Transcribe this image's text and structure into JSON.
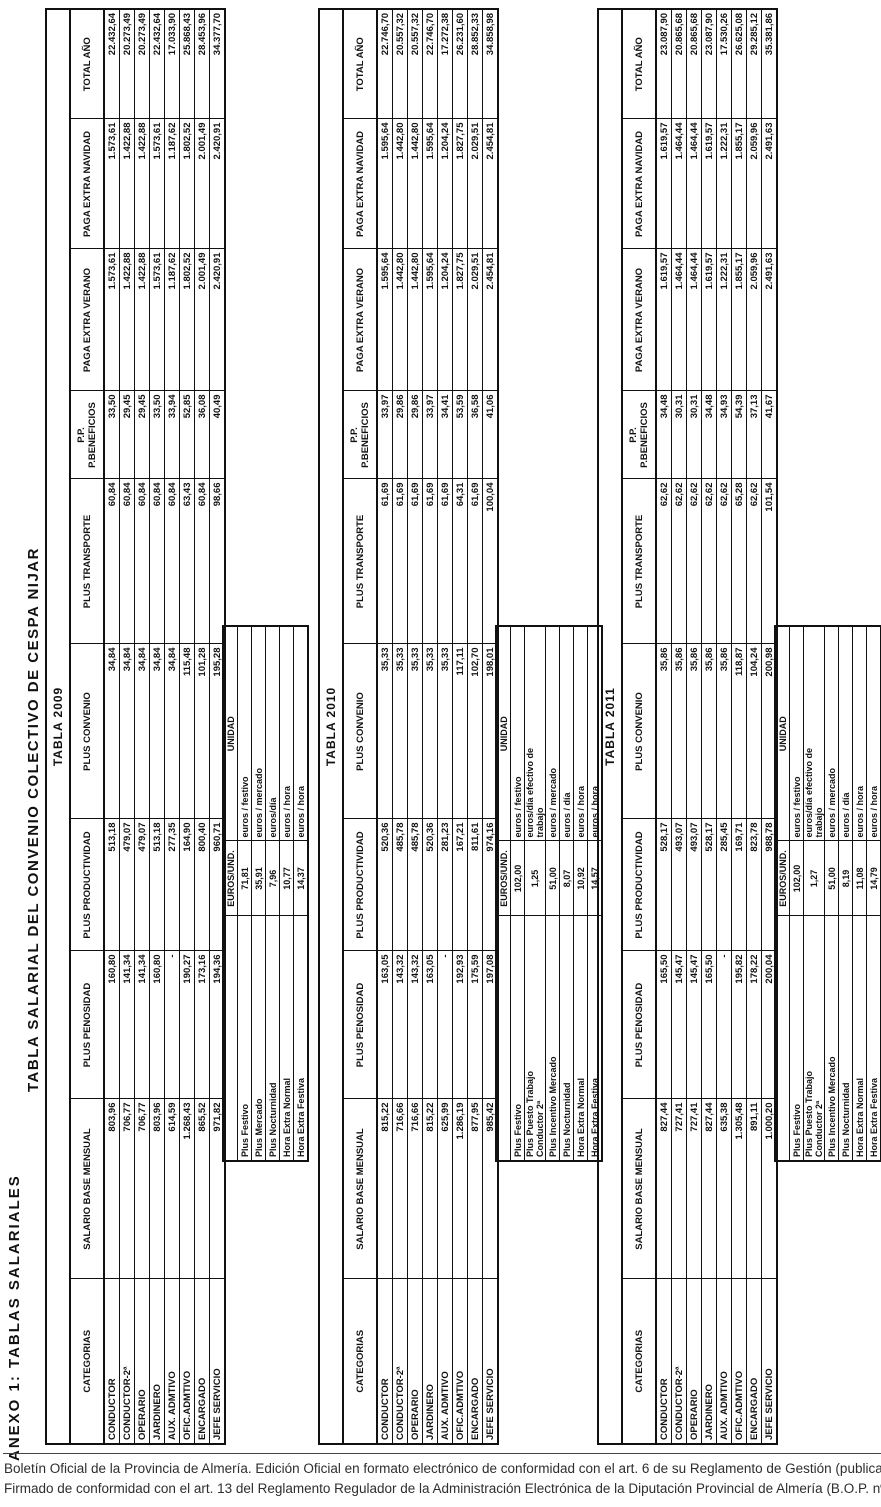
{
  "page": {
    "anexo_title": "ANEXO 1: TABLAS SALARIALES",
    "main_title": "TABLA SALARIAL DEL CONVENIO COLECTIVO DE CESPA NIJAR",
    "footer_line1": "Boletín Oficial de la Provincia de Almería. Edición Oficial en formato electrónico de conformidad con el art. 6 de su Reglamento de Gestión (publicado en B.O.P. n",
    "footer_line2": "Firmado de conformidad con el art. 13 del Reglamento Regulador de la Administración Electrónica de la Diputación Provincial de Almería (B.O.P. nº"
  },
  "columns": [
    "CATEGORIAS",
    "SALARIO BASE MENSUAL",
    "PLUS PENOSIDAD",
    "PLUS PRODUCTIVIDAD",
    "PLUS CONVENIO",
    "PLUS TRANSPORTE",
    "P.P. P.BENEFICIOS",
    "PAGA EXTRA VERANO",
    "PAGA EXTRA NAVIDAD",
    "TOTAL AÑO"
  ],
  "tables": [
    {
      "title": "TABLA 2009",
      "rows": [
        {
          "category": "CONDUCTOR",
          "values": [
            "803,96",
            "160,80",
            "513,18",
            "34,84",
            "60,84",
            "33,50",
            "1.573,61",
            "1.573,61",
            "22.432,64"
          ]
        },
        {
          "category": "CONDUCTOR-2ª",
          "values": [
            "706,77",
            "141,34",
            "479,07",
            "34,84",
            "60,84",
            "29,45",
            "1.422,88",
            "1.422,88",
            "20.273,49"
          ]
        },
        {
          "category": "OPERARIO",
          "values": [
            "706,77",
            "141,34",
            "479,07",
            "34,84",
            "60,84",
            "29,45",
            "1.422,88",
            "1.422,88",
            "20.273,49"
          ]
        },
        {
          "category": "JARDINERO",
          "values": [
            "803,96",
            "160,80",
            "513,18",
            "34,84",
            "60,84",
            "33,50",
            "1.573,61",
            "1.573,61",
            "22.432,64"
          ]
        },
        {
          "category": "AUX. ADMTIVO",
          "values": [
            "614,59",
            "-",
            "277,35",
            "34,84",
            "60,84",
            "33,94",
            "1.187,62",
            "1.187,62",
            "17.033,90"
          ]
        },
        {
          "category": "OFIC.ADMTIVO",
          "values": [
            "1.268,43",
            "190,27",
            "164,90",
            "115,48",
            "63,43",
            "52,85",
            "1.802,52",
            "1.802,52",
            "25.868,43"
          ]
        },
        {
          "category": "ENCARGADO",
          "values": [
            "865,52",
            "173,16",
            "800,40",
            "101,28",
            "60,84",
            "36,08",
            "2.001,49",
            "2.001,49",
            "28.453,96"
          ]
        },
        {
          "category": "JEFE SERVICIO",
          "values": [
            "971,82",
            "194,36",
            "960,71",
            "195,28",
            "98,66",
            "40,49",
            "2.420,91",
            "2.420,91",
            "34.377,70"
          ]
        }
      ],
      "extras": {
        "value_header": "EUROS/UND.",
        "unit_header": "UNIDAD",
        "rows": [
          {
            "label": "Plus Festivo",
            "label2": "",
            "value": "71,81",
            "unit": "euros / festivo",
            "unit2": ""
          },
          {
            "label": "Plus Mercado",
            "label2": "",
            "value": "35,91",
            "unit": "euros / mercado",
            "unit2": ""
          },
          {
            "label": "Plus Nocturnidad",
            "label2": "",
            "value": "7,96",
            "unit": "euros/día",
            "unit2": ""
          },
          {
            "label": "Hora Extra Normal",
            "label2": "",
            "value": "10,77",
            "unit": "euros / hora",
            "unit2": ""
          },
          {
            "label": "Hora Extra Festiva",
            "label2": "",
            "value": "14,37",
            "unit": "euros / hora",
            "unit2": ""
          }
        ]
      }
    },
    {
      "title": "TABLA 2010",
      "rows": [
        {
          "category": "CONDUCTOR",
          "values": [
            "815,22",
            "163,05",
            "520,36",
            "35,33",
            "61,69",
            "33,97",
            "1.595,64",
            "1.595,64",
            "22.746,70"
          ]
        },
        {
          "category": "CONDUCTOR-2ª",
          "values": [
            "716,66",
            "143,32",
            "485,78",
            "35,33",
            "61,69",
            "29,86",
            "1.442,80",
            "1.442,80",
            "20.557,32"
          ]
        },
        {
          "category": "OPERARIO",
          "values": [
            "716,66",
            "143,32",
            "485,78",
            "35,33",
            "61,69",
            "29,86",
            "1.442,80",
            "1.442,80",
            "20.557,32"
          ]
        },
        {
          "category": "JARDINERO",
          "values": [
            "815,22",
            "163,05",
            "520,36",
            "35,33",
            "61,69",
            "33,97",
            "1.595,64",
            "1.595,64",
            "22.746,70"
          ]
        },
        {
          "category": "AUX. ADMTIVO",
          "values": [
            "625,99",
            "-",
            "281,23",
            "35,33",
            "61,69",
            "34,41",
            "1.204,24",
            "1.204,24",
            "17.272,38"
          ]
        },
        {
          "category": "OFIC.ADMTIVO",
          "values": [
            "1.286,19",
            "192,93",
            "167,21",
            "117,11",
            "64,31",
            "53,59",
            "1.827,75",
            "1.827,75",
            "26.231,60"
          ]
        },
        {
          "category": "ENCARGADO",
          "values": [
            "877,95",
            "175,59",
            "811,61",
            "102,70",
            "61,69",
            "36,58",
            "2.029,51",
            "2.029,51",
            "28.852,33"
          ]
        },
        {
          "category": "JEFE SERVICIO",
          "values": [
            "985,42",
            "197,08",
            "974,16",
            "198,01",
            "100,04",
            "41,06",
            "2.454,81",
            "2.454,81",
            "34.858,98"
          ]
        }
      ],
      "extras": {
        "value_header": "EUROS/UND.",
        "unit_header": "UNIDAD",
        "rows": [
          {
            "label": "Plus Festivo",
            "label2": "",
            "value": "102,00",
            "unit": "euros / festivo",
            "unit2": ""
          },
          {
            "label": "Plus Puesto Trabajo",
            "label2": "Conductor 2ª",
            "value": "1,25",
            "unit": "euros/día efectivo de",
            "unit2": "trabajo"
          },
          {
            "label": "Plus Incentivo Mercado",
            "label2": "",
            "value": "51,00",
            "unit": "euros / mercado",
            "unit2": ""
          },
          {
            "label": "Plus Nocturnidad",
            "label2": "",
            "value": "8,07",
            "unit": "euros / día",
            "unit2": ""
          },
          {
            "label": "Hora Extra Normal",
            "label2": "",
            "value": "10,92",
            "unit": "euros / hora",
            "unit2": ""
          },
          {
            "label": "Hora Extra Festiva",
            "label2": "",
            "value": "14,57",
            "unit": "euros / hora",
            "unit2": ""
          }
        ]
      }
    },
    {
      "title": "TABLA 2011",
      "rows": [
        {
          "category": "CONDUCTOR",
          "values": [
            "827,44",
            "165,50",
            "528,17",
            "35,86",
            "62,62",
            "34,48",
            "1.619,57",
            "1.619,57",
            "23.087,90"
          ]
        },
        {
          "category": "CONDUCTOR-2ª",
          "values": [
            "727,41",
            "145,47",
            "493,07",
            "35,86",
            "62,62",
            "30,31",
            "1.464,44",
            "1.464,44",
            "20.865,68"
          ]
        },
        {
          "category": "OPERARIO",
          "values": [
            "727,41",
            "145,47",
            "493,07",
            "35,86",
            "62,62",
            "30,31",
            "1.464,44",
            "1.464,44",
            "20.865,68"
          ]
        },
        {
          "category": "JARDINERO",
          "values": [
            "827,44",
            "165,50",
            "528,17",
            "35,86",
            "62,62",
            "34,48",
            "1.619,57",
            "1.619,57",
            "23.087,90"
          ]
        },
        {
          "category": "AUX. ADMTIVO",
          "values": [
            "635,38",
            "-",
            "285,45",
            "35,86",
            "62,62",
            "34,93",
            "1.222,31",
            "1.222,31",
            "17.530,26"
          ]
        },
        {
          "category": "OFIC.ADMTIVO",
          "values": [
            "1.305,48",
            "195,82",
            "169,71",
            "118,87",
            "65,28",
            "54,39",
            "1.855,17",
            "1.855,17",
            "26.625,08"
          ]
        },
        {
          "category": "ENCARGADO",
          "values": [
            "891,11",
            "178,22",
            "823,78",
            "104,24",
            "62,62",
            "37,13",
            "2.059,96",
            "2.059,96",
            "29.285,12"
          ]
        },
        {
          "category": "JEFE SERVICIO",
          "values": [
            "1.000,20",
            "200,04",
            "988,78",
            "200,98",
            "101,54",
            "41,67",
            "2.491,63",
            "2.491,63",
            "35.381,86"
          ]
        }
      ],
      "extras": {
        "value_header": "EUROS/UND.",
        "unit_header": "UNIDAD",
        "rows": [
          {
            "label": "Plus Festivo",
            "label2": "",
            "value": "102,00",
            "unit": "euros / festivo",
            "unit2": ""
          },
          {
            "label": "Plus Puesto Trabajo",
            "label2": "Conductor 2ª",
            "value": "1,27",
            "unit": "euros/día efectivo de",
            "unit2": "trabajo"
          },
          {
            "label": "Plus Incentivo Mercado",
            "label2": "",
            "value": "51,00",
            "unit": "euros / mercado",
            "unit2": ""
          },
          {
            "label": "Plus Nocturnidad",
            "label2": "",
            "value": "8,19",
            "unit": "euros / día",
            "unit2": ""
          },
          {
            "label": "Hora Extra Normal",
            "label2": "",
            "value": "11,08",
            "unit": "euros / hora",
            "unit2": ""
          },
          {
            "label": "Hora Extra Festiva",
            "label2": "",
            "value": "14,79",
            "unit": "euros / hora",
            "unit2": ""
          }
        ]
      }
    }
  ]
}
